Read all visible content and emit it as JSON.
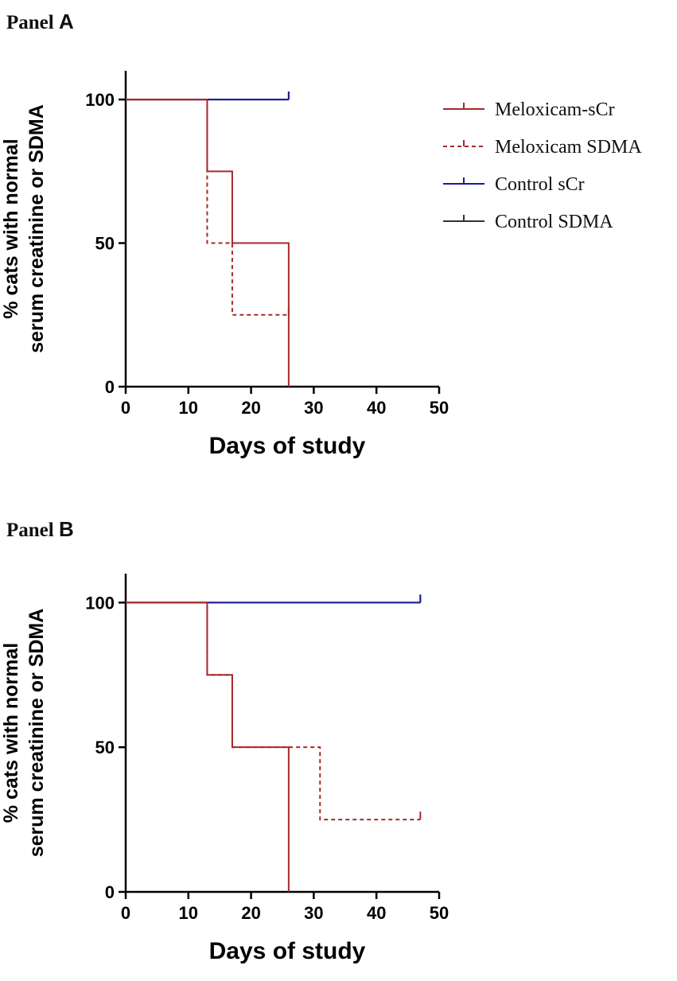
{
  "panels": {
    "a": {
      "prefix": "Panel",
      "letter": "A"
    },
    "b": {
      "prefix": "Panel",
      "letter": "B"
    }
  },
  "chart_data": [
    {
      "type": "line",
      "step": true,
      "title": "Panel A",
      "xlabel": "Days of study",
      "ylabel": [
        "% cats with normal",
        "serum creatinine or SDMA"
      ],
      "xlim": [
        0,
        50
      ],
      "ylim": [
        0,
        110
      ],
      "xticks": [
        0,
        10,
        20,
        30,
        40,
        50
      ],
      "yticks": [
        0,
        50,
        100
      ],
      "legend_position": "top-right",
      "series": [
        {
          "name": "Meloxicam-sCr",
          "color": "#a52a2a",
          "dashed": false,
          "x": [
            0,
            13,
            17,
            26
          ],
          "y": [
            100,
            75,
            50,
            0
          ]
        },
        {
          "name": "Meloxicam SDMA",
          "color": "#a52a2a",
          "dashed": true,
          "x": [
            0,
            13,
            17,
            26
          ],
          "y": [
            100,
            50,
            25,
            25
          ],
          "censored": [
            26
          ]
        },
        {
          "name": "Control sCr",
          "color": "#1a1a9a",
          "dashed": false,
          "x": [
            0,
            26
          ],
          "y": [
            100,
            100
          ],
          "censored": [
            26
          ]
        },
        {
          "name": "Control SDMA",
          "color": "#333333",
          "dashed": false,
          "x": [
            0,
            26
          ],
          "y": [
            100,
            100
          ],
          "censored": [
            26
          ]
        }
      ]
    },
    {
      "type": "line",
      "step": true,
      "title": "Panel B",
      "xlabel": "Days of study",
      "ylabel": [
        "% cats with normal",
        "serum creatinine or SDMA"
      ],
      "xlim": [
        0,
        50
      ],
      "ylim": [
        0,
        110
      ],
      "xticks": [
        0,
        10,
        20,
        30,
        40,
        50
      ],
      "yticks": [
        0,
        50,
        100
      ],
      "series": [
        {
          "name": "Meloxicam-sCr",
          "color": "#a52a2a",
          "dashed": false,
          "x": [
            0,
            13,
            17,
            26
          ],
          "y": [
            100,
            75,
            50,
            0
          ]
        },
        {
          "name": "Meloxicam SDMA",
          "color": "#a52a2a",
          "dashed": true,
          "x": [
            0,
            13,
            17,
            31,
            47
          ],
          "y": [
            100,
            75,
            50,
            25,
            25
          ],
          "censored": [
            47
          ]
        },
        {
          "name": "Control sCr",
          "color": "#1a1a9a",
          "dashed": false,
          "x": [
            0,
            47
          ],
          "y": [
            100,
            100
          ],
          "censored": [
            47
          ]
        },
        {
          "name": "Control SDMA",
          "color": "#333333",
          "dashed": false,
          "x": [
            0,
            47
          ],
          "y": [
            100,
            100
          ],
          "censored": [
            47
          ]
        }
      ]
    }
  ]
}
